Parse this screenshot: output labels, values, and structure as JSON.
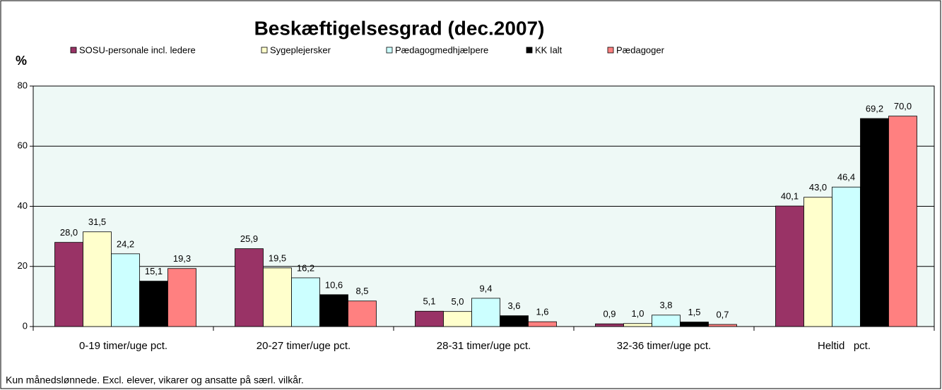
{
  "chart_data": {
    "type": "bar",
    "title": "Beskæftigelsesgrad (dec.2007)",
    "ylabel": "%",
    "note": "Kun månedslønnede. Excl. elever, vikarer og ansatte på særl. vilkår.",
    "categories": [
      "0-19 timer/uge pct.",
      "20-27 timer/uge pct.",
      "28-31 timer/uge pct.",
      "32-36 timer/uge pct.",
      "Heltid   pct."
    ],
    "series": [
      {
        "name": "SOSU-personale incl. ledere",
        "color": "#993366",
        "values": [
          28.0,
          25.9,
          5.1,
          0.9,
          40.1
        ],
        "value_labels": [
          "28,0",
          "25,9",
          "5,1",
          "0,9",
          "40,1"
        ]
      },
      {
        "name": "Sygeplejersker",
        "color": "#FFFFCC",
        "values": [
          31.5,
          19.5,
          5.0,
          1.0,
          43.0
        ],
        "value_labels": [
          "31,5",
          "19,5",
          "5,0",
          "1,0",
          "43,0"
        ]
      },
      {
        "name": "Pædagogmedhjælpere",
        "color": "#CCFFFF",
        "values": [
          24.2,
          16.2,
          9.4,
          3.8,
          46.4
        ],
        "value_labels": [
          "24,2",
          "16,2",
          "9,4",
          "3,8",
          "46,4"
        ]
      },
      {
        "name": "KK Ialt",
        "color": "#000000",
        "values": [
          15.1,
          10.6,
          3.6,
          1.5,
          69.2
        ],
        "value_labels": [
          "15,1",
          "10,6",
          "3,6",
          "1,5",
          "69,2"
        ]
      },
      {
        "name": "Pædagoger",
        "color": "#FF8080",
        "values": [
          19.3,
          8.5,
          1.6,
          0.7,
          70.0
        ],
        "value_labels": [
          "19,3",
          "8,5",
          "1,6",
          "0,7",
          "70,0"
        ]
      }
    ],
    "ylim": [
      0,
      80
    ],
    "yticks": [
      0,
      20,
      40,
      60,
      80
    ],
    "grid": true,
    "legend": "top"
  }
}
